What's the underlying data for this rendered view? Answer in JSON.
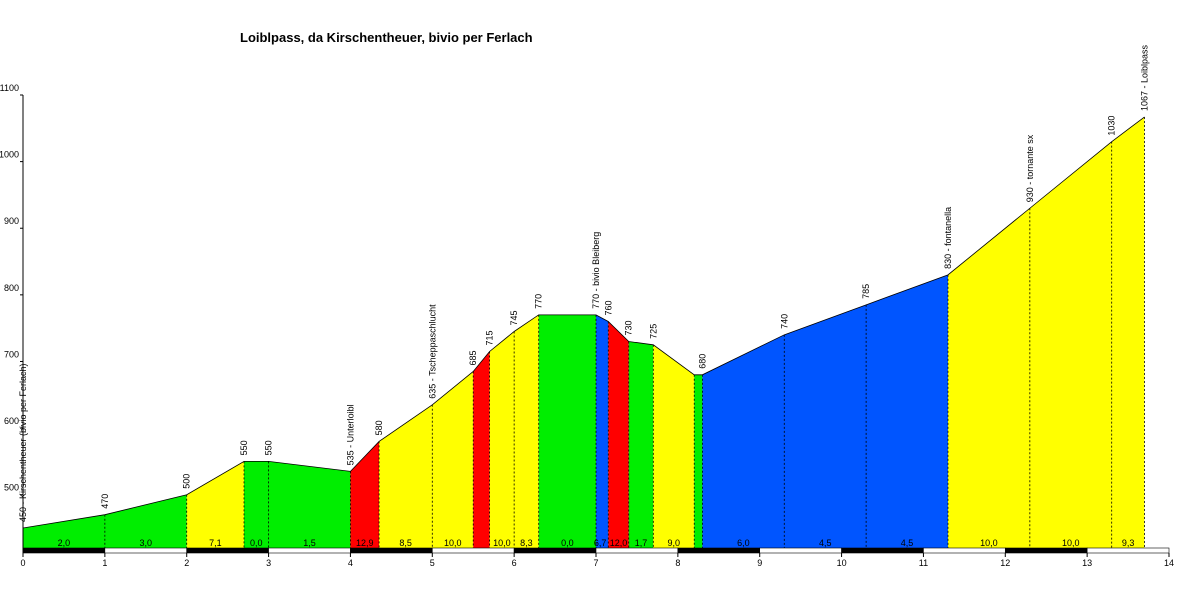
{
  "chart_data": {
    "type": "area",
    "title": "Loiblpass, da Kirschentheuer, bivio per Ferlach",
    "xlabel": "",
    "ylabel": "",
    "xlim": [
      0,
      14
    ],
    "ylim": [
      420,
      1100
    ],
    "x_ticks": [
      "0",
      "1",
      "2",
      "3",
      "4",
      "5",
      "6",
      "7",
      "8",
      "9",
      "10",
      "11",
      "12",
      "13",
      "14"
    ],
    "y_ticks": [
      "500",
      "600",
      "700",
      "800",
      "900",
      "1000",
      "1100"
    ],
    "profile": [
      {
        "x": 0,
        "y": 450
      },
      {
        "x": 1,
        "y": 470
      },
      {
        "x": 2,
        "y": 500
      },
      {
        "x": 2.7,
        "y": 550
      },
      {
        "x": 3.0,
        "y": 550
      },
      {
        "x": 4.0,
        "y": 535
      },
      {
        "x": 4.35,
        "y": 580
      },
      {
        "x": 5.0,
        "y": 635
      },
      {
        "x": 5.5,
        "y": 685
      },
      {
        "x": 5.7,
        "y": 715
      },
      {
        "x": 6.0,
        "y": 745
      },
      {
        "x": 6.3,
        "y": 770
      },
      {
        "x": 7.0,
        "y": 770
      },
      {
        "x": 7.15,
        "y": 760
      },
      {
        "x": 7.4,
        "y": 730
      },
      {
        "x": 7.7,
        "y": 725
      },
      {
        "x": 8.2,
        "y": 680
      },
      {
        "x": 8.3,
        "y": 680
      },
      {
        "x": 9.3,
        "y": 740
      },
      {
        "x": 10.3,
        "y": 785
      },
      {
        "x": 11.3,
        "y": 830
      },
      {
        "x": 12.3,
        "y": 930
      },
      {
        "x": 13.3,
        "y": 1030
      },
      {
        "x": 13.7,
        "y": 1067
      }
    ],
    "segments": [
      {
        "from": 0,
        "to": 2,
        "color": "#00ee00"
      },
      {
        "from": 2,
        "to": 2.7,
        "color": "#ffff00"
      },
      {
        "from": 2.7,
        "to": 4.0,
        "color": "#00ee00"
      },
      {
        "from": 4.0,
        "to": 4.35,
        "color": "#ff0000"
      },
      {
        "from": 4.35,
        "to": 5.5,
        "color": "#ffff00"
      },
      {
        "from": 5.5,
        "to": 5.7,
        "color": "#ff0000"
      },
      {
        "from": 5.7,
        "to": 6.3,
        "color": "#ffff00"
      },
      {
        "from": 6.3,
        "to": 7.0,
        "color": "#00ee00"
      },
      {
        "from": 7.0,
        "to": 7.15,
        "color": "#0055ff"
      },
      {
        "from": 7.15,
        "to": 7.4,
        "color": "#ff0000"
      },
      {
        "from": 7.4,
        "to": 7.7,
        "color": "#00ee00"
      },
      {
        "from": 7.7,
        "to": 8.2,
        "color": "#ffff00"
      },
      {
        "from": 8.2,
        "to": 8.3,
        "color": "#00ee00"
      },
      {
        "from": 8.3,
        "to": 11.3,
        "color": "#0055ff"
      },
      {
        "from": 11.3,
        "to": 13.7,
        "color": "#ffff00"
      }
    ],
    "dotted_lines": [
      1,
      2,
      2.7,
      3.0,
      4.0,
      4.35,
      5.0,
      5.5,
      5.7,
      6.0,
      6.3,
      7.0,
      7.15,
      7.4,
      7.7,
      8.2,
      8.3,
      9.3,
      10.3,
      11.3,
      12.3,
      13.3,
      13.7
    ],
    "elevation_labels": [
      {
        "x": 0,
        "y": 450,
        "text": "450 - Kirschentheuer (bivio per Ferlach)"
      },
      {
        "x": 1,
        "y": 470,
        "text": "470"
      },
      {
        "x": 2,
        "y": 500,
        "text": "500"
      },
      {
        "x": 2.7,
        "y": 550,
        "text": "550"
      },
      {
        "x": 3.0,
        "y": 550,
        "text": "550"
      },
      {
        "x": 4.0,
        "y": 535,
        "text": "535 - Unterloibl"
      },
      {
        "x": 4.35,
        "y": 580,
        "text": "580"
      },
      {
        "x": 5.0,
        "y": 635,
        "text": "635 - Tscheppaschlucht"
      },
      {
        "x": 5.5,
        "y": 685,
        "text": "685"
      },
      {
        "x": 5.7,
        "y": 715,
        "text": "715"
      },
      {
        "x": 6.0,
        "y": 745,
        "text": "745"
      },
      {
        "x": 6.3,
        "y": 770,
        "text": "770"
      },
      {
        "x": 7.0,
        "y": 770,
        "text": "770 - bivio Bleiberg"
      },
      {
        "x": 7.15,
        "y": 760,
        "text": "760"
      },
      {
        "x": 7.4,
        "y": 730,
        "text": "730"
      },
      {
        "x": 7.7,
        "y": 725,
        "text": "725"
      },
      {
        "x": 8.3,
        "y": 680,
        "text": "680"
      },
      {
        "x": 9.3,
        "y": 740,
        "text": "740"
      },
      {
        "x": 10.3,
        "y": 785,
        "text": "785"
      },
      {
        "x": 11.3,
        "y": 830,
        "text": "830 - fontanella"
      },
      {
        "x": 12.3,
        "y": 930,
        "text": "930 - tornante sx"
      },
      {
        "x": 13.3,
        "y": 1030,
        "text": "1030"
      },
      {
        "x": 13.7,
        "y": 1067,
        "text": "1067 - Loiblpass"
      }
    ],
    "gradient_labels": [
      {
        "x": 0.5,
        "text": "2,0"
      },
      {
        "x": 1.5,
        "text": "3,0"
      },
      {
        "x": 2.35,
        "text": "7,1"
      },
      {
        "x": 2.85,
        "text": "0,0"
      },
      {
        "x": 3.5,
        "text": "1,5"
      },
      {
        "x": 4.175,
        "text": "12,9"
      },
      {
        "x": 4.675,
        "text": "8,5"
      },
      {
        "x": 5.25,
        "text": "10,0"
      },
      {
        "x": 5.85,
        "text": "10,0"
      },
      {
        "x": 6.15,
        "text": "8,3"
      },
      {
        "x": 6.65,
        "text": "0,0"
      },
      {
        "x": 7.05,
        "text": "6,7"
      },
      {
        "x": 7.275,
        "text": "12,0"
      },
      {
        "x": 7.55,
        "text": "1,7"
      },
      {
        "x": 7.95,
        "text": "9,0"
      },
      {
        "x": 8.8,
        "text": "6,0"
      },
      {
        "x": 9.8,
        "text": "4,5"
      },
      {
        "x": 10.8,
        "text": "4,5"
      },
      {
        "x": 11.8,
        "text": "10,0"
      },
      {
        "x": 12.8,
        "text": "10,0"
      },
      {
        "x": 13.5,
        "text": "9,3"
      }
    ]
  }
}
